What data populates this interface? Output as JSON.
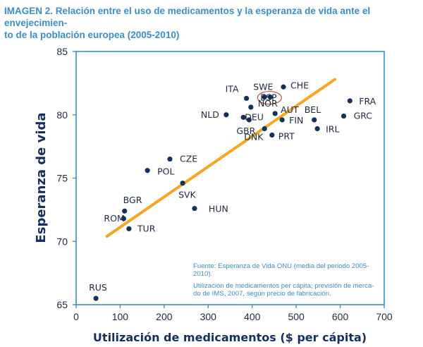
{
  "chart_data": {
    "type": "scatter",
    "title": "IMAGEN 2. Relación entre el uso de medicamentos y la esperanza de vida ante el envejecimien- to de la población europea (2005-2010)",
    "title_lines": [
      "IMAGEN 2. Relación entre el uso de medicamentos y la esperanza de vida ante el envejecimien-",
      "to de la población europea (2005-2010)"
    ],
    "xlabel": "Utilización de medicamentos ($ per cápita)",
    "ylabel": "Esperanza de vida",
    "xlim": [
      0,
      700
    ],
    "ylim": [
      65,
      85
    ],
    "xticks": [
      0,
      100,
      200,
      300,
      400,
      500,
      600,
      700
    ],
    "yticks": [
      65,
      70,
      75,
      80,
      85
    ],
    "grid": false,
    "colors": {
      "points": "#13305e",
      "trend": "#f5a623",
      "frame": "#3a8fc4",
      "highlight": "#c0392b"
    },
    "points": [
      {
        "label": "RUS",
        "x": 45,
        "y": 65.5
      },
      {
        "label": "ROM",
        "x": 108,
        "y": 71.8
      },
      {
        "label": "BGR",
        "x": 110,
        "y": 72.4
      },
      {
        "label": "TUR",
        "x": 120,
        "y": 71.0
      },
      {
        "label": "POL",
        "x": 162,
        "y": 75.6
      },
      {
        "label": "CZE",
        "x": 213,
        "y": 76.5
      },
      {
        "label": "SVK",
        "x": 242,
        "y": 74.6
      },
      {
        "label": "HUN",
        "x": 269,
        "y": 72.6
      },
      {
        "label": "NLD",
        "x": 341,
        "y": 80.0
      },
      {
        "label": "ITA",
        "x": 387,
        "y": 81.3
      },
      {
        "label": "NOR",
        "x": 397,
        "y": 80.6
      },
      {
        "label": "DEU",
        "x": 380,
        "y": 79.8
      },
      {
        "label": "GBR",
        "x": 393,
        "y": 79.6
      },
      {
        "label": "SWE",
        "x": 428,
        "y": 81.4
      },
      {
        "label": "ESP",
        "x": 441,
        "y": 81.4
      },
      {
        "label": "CHE",
        "x": 471,
        "y": 82.2
      },
      {
        "label": "AUT",
        "x": 452,
        "y": 80.1
      },
      {
        "label": "FIN",
        "x": 468,
        "y": 79.6
      },
      {
        "label": "DNK",
        "x": 428,
        "y": 78.9
      },
      {
        "label": "PRT",
        "x": 445,
        "y": 78.4
      },
      {
        "label": "BEL",
        "x": 541,
        "y": 79.6
      },
      {
        "label": "IRL",
        "x": 548,
        "y": 78.9
      },
      {
        "label": "GRC",
        "x": 608,
        "y": 79.9
      },
      {
        "label": "FRA",
        "x": 622,
        "y": 81.1
      }
    ],
    "highlighted": "ESP",
    "trendline": {
      "x": [
        70,
        588
      ],
      "y": [
        70.4,
        82.8
      ]
    },
    "annotations": [
      {
        "lines": [
          "Fuente: Esperanza de Vida ONU (media del periodo 2005-",
          "2010)."
        ]
      },
      {
        "lines": [
          "Utilización de medicamentos per cápita; previsión de merca-",
          "do de IMS, 2007, según precio de fabricación."
        ]
      }
    ]
  }
}
